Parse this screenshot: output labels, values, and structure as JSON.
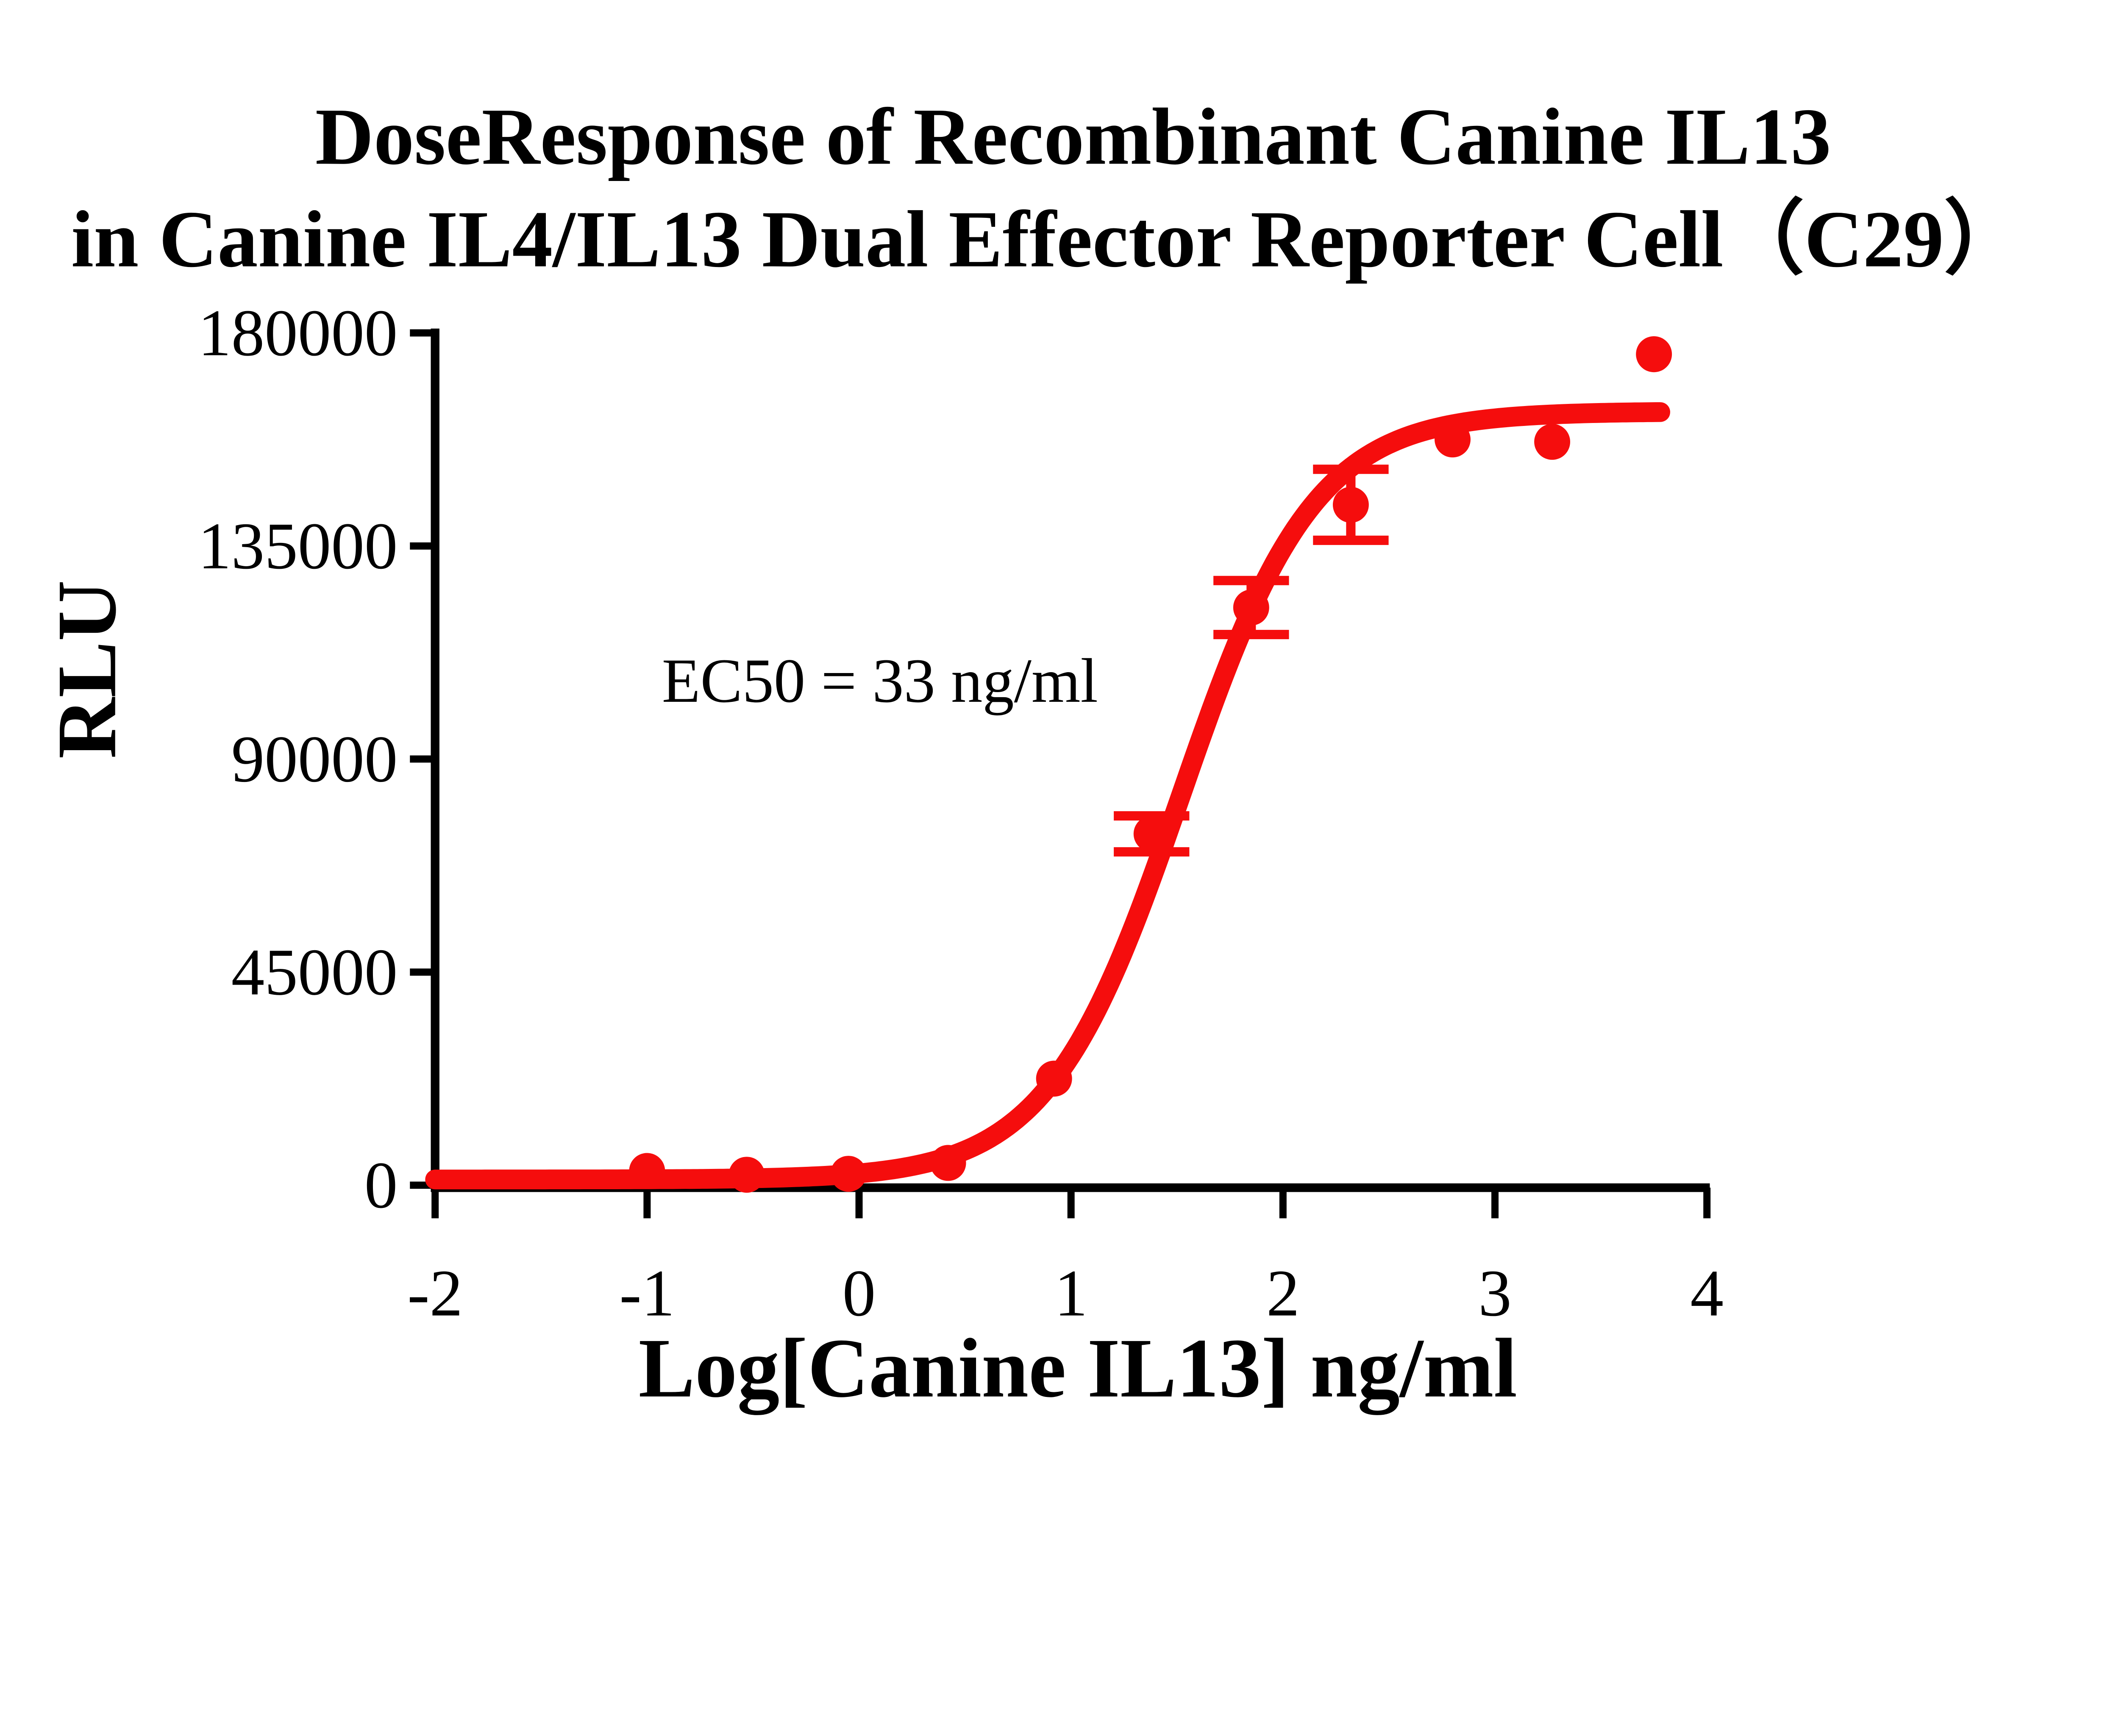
{
  "page": {
    "background_color": "#ffffff"
  },
  "chart": {
    "title_line1": "DoseResponse of Recombinant Canine IL13",
    "title_line2": "in Canine IL4/IL13 Dual Effector Reporter Cell（C29）",
    "ylabel": "RLU",
    "xlabel": "Log[Canine IL13] ng/ml",
    "annotation": "EC50 = 33 ng/ml",
    "accent_color": "#F50D0D",
    "axis_color": "#000000"
  },
  "chart_data": {
    "type": "scatter",
    "title": "DoseResponse of Recombinant Canine IL13 in Canine IL4/IL13 Dual Effector Reporter Cell（C29）",
    "xlabel": "Log[Canine IL13] ng/ml",
    "ylabel": "RLU",
    "xlim": [
      -2,
      4
    ],
    "ylim": [
      0,
      180000
    ],
    "x_ticks": [
      -2,
      -1,
      0,
      1,
      2,
      3,
      4
    ],
    "y_ticks": [
      0,
      45000,
      90000,
      135000,
      180000
    ],
    "grid": false,
    "legend": "none",
    "series": [
      {
        "name": "Canine IL13",
        "marker": "circle",
        "color": "#F50D0D",
        "points": [
          {
            "log_conc": -1.0,
            "rlu": 3000,
            "sem": 0
          },
          {
            "log_conc": -0.53,
            "rlu": 2200,
            "sem": 0
          },
          {
            "log_conc": -0.05,
            "rlu": 2400,
            "sem": 0
          },
          {
            "log_conc": 0.42,
            "rlu": 4700,
            "sem": 0
          },
          {
            "log_conc": 0.92,
            "rlu": 22500,
            "sem": 0
          },
          {
            "log_conc": 1.38,
            "rlu": 74200,
            "sem": 3800
          },
          {
            "log_conc": 1.85,
            "rlu": 122000,
            "sem": 5700
          },
          {
            "log_conc": 2.32,
            "rlu": 143700,
            "sem": 7500
          },
          {
            "log_conc": 2.8,
            "rlu": 157500,
            "sem": 0
          },
          {
            "log_conc": 3.27,
            "rlu": 157000,
            "sem": 0
          },
          {
            "log_conc": 3.75,
            "rlu": 175500,
            "sem": 0
          }
        ]
      }
    ],
    "fit_curve": {
      "model": "four-parameter-logistic",
      "bottom": 1200,
      "top": 163400,
      "log_ec50": 1.5185,
      "hill_slope": 1.38,
      "x_start": -2.0,
      "x_end": 3.78
    },
    "annotations": [
      {
        "text": "EC50 = 33 ng/ml",
        "x": 0.55,
        "y": 102000
      }
    ],
    "ec50_ng_ml": 33
  }
}
